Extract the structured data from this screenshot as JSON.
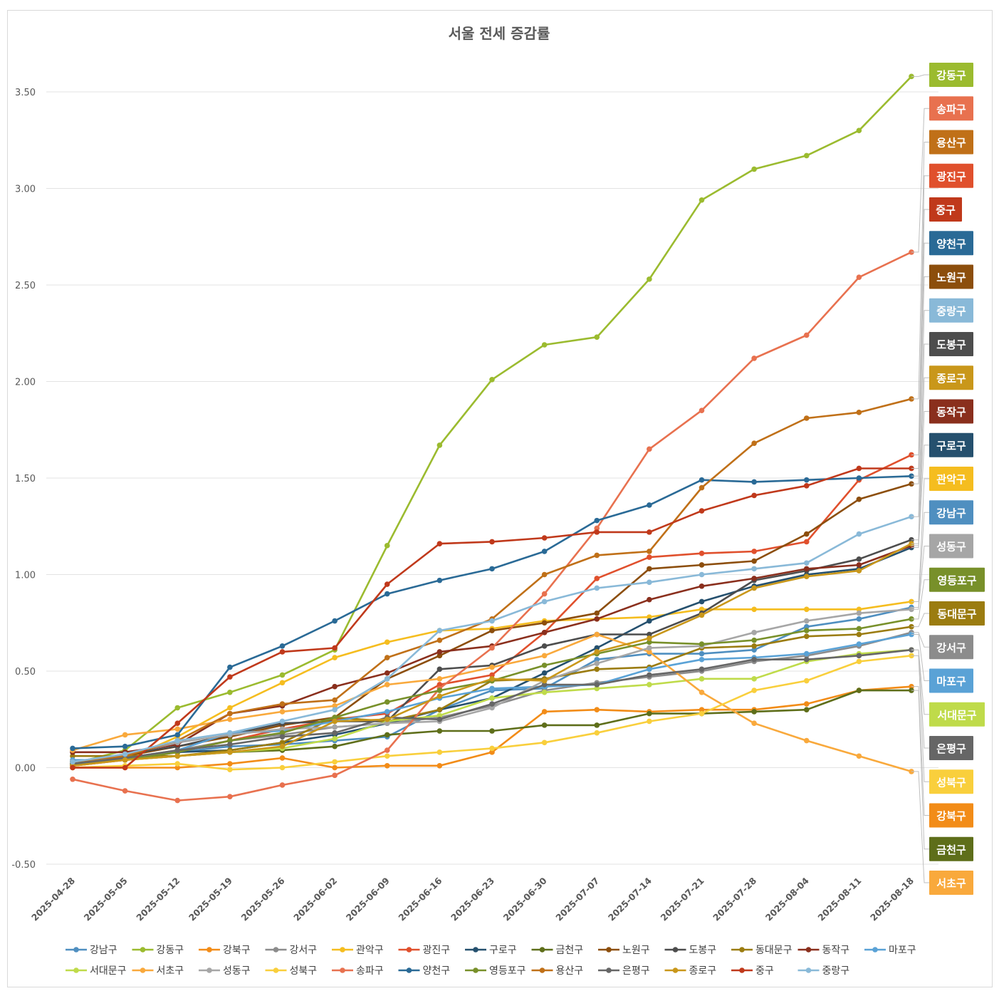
{
  "chart_data": {
    "type": "line",
    "title": "서울 전세 증감률",
    "xlabel": "",
    "ylabel": "",
    "ylim": [
      -0.5,
      3.75
    ],
    "yticks": [
      "-0.50",
      "0.00",
      "0.50",
      "1.00",
      "1.50",
      "2.00",
      "2.50",
      "3.00",
      "3.50"
    ],
    "grid": "horizontal",
    "legend_position": "bottom",
    "end_labels": "right",
    "x": [
      "2025-04-28",
      "2025-05-05",
      "2025-05-12",
      "2025-05-19",
      "2025-05-26",
      "2025-06-02",
      "2025-06-09",
      "2025-06-16",
      "2025-06-23",
      "2025-06-30",
      "2025-07-07",
      "2025-07-14",
      "2025-07-21",
      "2025-07-28",
      "2025-08-04",
      "2025-08-11",
      "2025-08-18"
    ],
    "series": [
      {
        "name": "강남구",
        "color": "#4f8fc0",
        "values": [
          0.03,
          0.05,
          0.08,
          0.11,
          0.12,
          0.14,
          0.16,
          0.3,
          0.4,
          0.41,
          0.56,
          0.59,
          0.59,
          0.61,
          0.73,
          0.77,
          0.83
        ]
      },
      {
        "name": "강동구",
        "color": "#9bbb2f",
        "values": [
          0.02,
          0.09,
          0.31,
          0.39,
          0.48,
          0.61,
          1.15,
          1.67,
          2.01,
          2.19,
          2.23,
          2.53,
          2.94,
          3.1,
          3.17,
          3.3,
          3.58
        ]
      },
      {
        "name": "강북구",
        "color": "#f28c18",
        "values": [
          0.0,
          0.0,
          0.0,
          0.02,
          0.05,
          0.0,
          0.01,
          0.01,
          0.08,
          0.29,
          0.3,
          0.29,
          0.3,
          0.3,
          0.33,
          0.4,
          0.42
        ]
      },
      {
        "name": "강서구",
        "color": "#8c8c8c",
        "values": [
          0.02,
          0.05,
          0.09,
          0.14,
          0.17,
          0.21,
          0.23,
          0.26,
          0.32,
          0.4,
          0.44,
          0.47,
          0.5,
          0.55,
          0.58,
          0.63,
          0.7
        ]
      },
      {
        "name": "관악구",
        "color": "#f5bd1f",
        "values": [
          0.01,
          0.04,
          0.16,
          0.31,
          0.44,
          0.57,
          0.65,
          0.71,
          0.72,
          0.76,
          0.77,
          0.78,
          0.82,
          0.82,
          0.82,
          0.82,
          0.86
        ]
      },
      {
        "name": "광진구",
        "color": "#e0502d",
        "values": [
          0.01,
          0.04,
          0.08,
          0.14,
          0.2,
          0.25,
          0.28,
          0.43,
          0.48,
          0.7,
          0.98,
          1.09,
          1.11,
          1.12,
          1.17,
          1.49,
          1.62
        ]
      },
      {
        "name": "구로구",
        "color": "#25506e",
        "values": [
          0.03,
          0.05,
          0.08,
          0.09,
          0.13,
          0.17,
          0.23,
          0.3,
          0.36,
          0.49,
          0.62,
          0.76,
          0.86,
          0.94,
          1.0,
          1.03,
          1.14
        ]
      },
      {
        "name": "금천구",
        "color": "#5e6e1a",
        "values": [
          0.03,
          0.04,
          0.06,
          0.08,
          0.09,
          0.11,
          0.17,
          0.19,
          0.19,
          0.22,
          0.22,
          0.28,
          0.28,
          0.29,
          0.3,
          0.4,
          0.4
        ]
      },
      {
        "name": "노원구",
        "color": "#8c4e0c",
        "values": [
          0.02,
          0.06,
          0.11,
          0.16,
          0.22,
          0.26,
          0.46,
          0.58,
          0.71,
          0.75,
          0.8,
          1.03,
          1.05,
          1.07,
          1.21,
          1.39,
          1.47
        ]
      },
      {
        "name": "도봉구",
        "color": "#4d4d4d",
        "values": [
          0.01,
          0.07,
          0.11,
          0.17,
          0.23,
          0.24,
          0.24,
          0.51,
          0.53,
          0.63,
          0.69,
          0.69,
          0.8,
          0.97,
          1.02,
          1.08,
          1.18
        ]
      },
      {
        "name": "동대문구",
        "color": "#9b7c10",
        "values": [
          0.06,
          0.06,
          0.06,
          0.09,
          0.13,
          0.26,
          0.24,
          0.3,
          0.45,
          0.46,
          0.51,
          0.52,
          0.62,
          0.63,
          0.68,
          0.69,
          0.73
        ]
      },
      {
        "name": "동작구",
        "color": "#8a2f1d",
        "values": [
          0.08,
          0.08,
          0.12,
          0.28,
          0.32,
          0.42,
          0.49,
          0.6,
          0.63,
          0.7,
          0.77,
          0.87,
          0.94,
          0.98,
          1.03,
          1.05,
          1.15
        ]
      },
      {
        "name": "마포구",
        "color": "#5aa2d6",
        "values": [
          0.04,
          0.04,
          0.09,
          0.18,
          0.19,
          0.24,
          0.29,
          0.36,
          0.41,
          0.42,
          0.43,
          0.51,
          0.56,
          0.57,
          0.59,
          0.64,
          0.69
        ]
      },
      {
        "name": "서대문구",
        "color": "#bfdb4a",
        "values": [
          0.02,
          0.04,
          0.06,
          0.08,
          0.1,
          0.15,
          0.24,
          0.27,
          0.36,
          0.39,
          0.41,
          0.43,
          0.46,
          0.46,
          0.55,
          0.59,
          0.61
        ]
      },
      {
        "name": "서초구",
        "color": "#f9a93c",
        "values": [
          0.09,
          0.17,
          0.2,
          0.25,
          0.29,
          0.32,
          0.43,
          0.46,
          0.52,
          0.58,
          0.69,
          0.6,
          0.39,
          0.23,
          0.14,
          0.06,
          -0.02
        ]
      },
      {
        "name": "성동구",
        "color": "#a6a6a6",
        "values": [
          0.03,
          0.07,
          0.13,
          0.17,
          0.2,
          0.21,
          0.23,
          0.24,
          0.31,
          0.45,
          0.54,
          0.62,
          0.63,
          0.7,
          0.76,
          0.8,
          0.82
        ]
      },
      {
        "name": "성북구",
        "color": "#f9cf3c",
        "values": [
          0.0,
          0.01,
          0.02,
          -0.01,
          0.0,
          0.03,
          0.06,
          0.08,
          0.1,
          0.13,
          0.18,
          0.24,
          0.28,
          0.4,
          0.45,
          0.55,
          0.58
        ]
      },
      {
        "name": "송파구",
        "color": "#e8714f",
        "values": [
          -0.06,
          -0.12,
          -0.17,
          -0.15,
          -0.09,
          -0.04,
          0.09,
          0.41,
          0.62,
          0.9,
          1.24,
          1.65,
          1.85,
          2.12,
          2.24,
          2.54,
          2.67
        ]
      },
      {
        "name": "양천구",
        "color": "#2a6a96",
        "values": [
          0.1,
          0.11,
          0.17,
          0.52,
          0.63,
          0.76,
          0.9,
          0.97,
          1.03,
          1.12,
          1.28,
          1.36,
          1.49,
          1.48,
          1.49,
          1.5,
          1.51
        ]
      },
      {
        "name": "영등포구",
        "color": "#78902a",
        "values": [
          0.02,
          0.04,
          0.08,
          0.14,
          0.18,
          0.26,
          0.34,
          0.4,
          0.45,
          0.53,
          0.59,
          0.65,
          0.64,
          0.66,
          0.71,
          0.72,
          0.77
        ]
      },
      {
        "name": "용산구",
        "color": "#c07018",
        "values": [
          0.03,
          0.06,
          0.14,
          0.28,
          0.33,
          0.35,
          0.57,
          0.66,
          0.77,
          1.0,
          1.1,
          1.12,
          1.45,
          1.68,
          1.81,
          1.84,
          1.91
        ]
      },
      {
        "name": "은평구",
        "color": "#666666",
        "values": [
          0.02,
          0.05,
          0.09,
          0.12,
          0.16,
          0.18,
          0.26,
          0.25,
          0.33,
          0.43,
          0.43,
          0.48,
          0.51,
          0.56,
          0.56,
          0.58,
          0.61
        ]
      },
      {
        "name": "종로구",
        "color": "#c9971a",
        "values": [
          0.01,
          0.04,
          0.06,
          0.08,
          0.11,
          0.24,
          0.25,
          0.37,
          0.46,
          0.45,
          0.6,
          0.67,
          0.79,
          0.93,
          0.99,
          1.02,
          1.16
        ]
      },
      {
        "name": "중구",
        "color": "#c0391b",
        "values": [
          0.0,
          0.0,
          0.23,
          0.47,
          0.6,
          0.62,
          0.95,
          1.16,
          1.17,
          1.19,
          1.22,
          1.22,
          1.33,
          1.41,
          1.46,
          1.55,
          1.55
        ]
      },
      {
        "name": "중랑구",
        "color": "#89b9d8",
        "values": [
          0.03,
          0.07,
          0.14,
          0.18,
          0.24,
          0.3,
          0.46,
          0.71,
          0.76,
          0.86,
          0.93,
          0.96,
          1.0,
          1.03,
          1.06,
          1.21,
          1.3
        ]
      }
    ],
    "end_label_order": [
      "강동구",
      "송파구",
      "용산구",
      "광진구",
      "중구",
      "양천구",
      "노원구",
      "중랑구",
      "도봉구",
      "종로구",
      "동작구",
      "구로구",
      "관악구",
      "강남구",
      "성동구",
      "영등포구",
      "동대문구",
      "강서구",
      "마포구",
      "서대문구",
      "은평구",
      "성북구",
      "강북구",
      "금천구",
      "서초구"
    ]
  }
}
